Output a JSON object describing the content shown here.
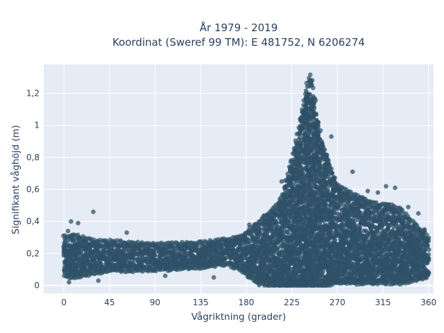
{
  "chart_data": {
    "type": "scatter",
    "title_lines": [
      "År 1979 - 2019",
      "Koordinat (Sweref 99 TM): E 481752, N 6206274"
    ],
    "xlabel": "Vågriktning (grader)",
    "ylabel": "Signifikant våghöjd (m)",
    "xlim": [
      -20,
      365
    ],
    "ylim": [
      -0.05,
      1.38
    ],
    "x_ticks": [
      0,
      45,
      90,
      135,
      180,
      225,
      270,
      315,
      360
    ],
    "x_tick_labels": [
      "0",
      "45",
      "90",
      "135",
      "180",
      "225",
      "270",
      "315",
      "360"
    ],
    "y_ticks": [
      0,
      0.2,
      0.4,
      0.6,
      0.8,
      1,
      1.2
    ],
    "y_tick_labels": [
      "0",
      "0,2",
      "0,4",
      "0,6",
      "0,8",
      "1",
      "1,2"
    ],
    "grid": true,
    "marker_color": "#2f5268",
    "background": "#e5ecf6",
    "envelope": {
      "x": [
        0,
        10,
        30,
        45,
        90,
        135,
        160,
        175,
        190,
        205,
        215,
        222,
        230,
        235,
        240,
        243,
        246,
        250,
        255,
        260,
        265,
        270,
        280,
        290,
        300,
        310,
        320,
        330,
        340,
        350,
        360
      ],
      "y_low": [
        0.06,
        0.06,
        0.08,
        0.1,
        0.1,
        0.12,
        0.14,
        0.1,
        0.02,
        0.0,
        0.0,
        0.0,
        0.0,
        0.0,
        0.0,
        0.0,
        0.0,
        0.0,
        0.0,
        0.0,
        0.02,
        0.02,
        0.02,
        0.02,
        0.02,
        0.02,
        0.02,
        0.02,
        0.03,
        0.04,
        0.06
      ],
      "y_high": [
        0.3,
        0.31,
        0.27,
        0.27,
        0.25,
        0.26,
        0.28,
        0.3,
        0.38,
        0.46,
        0.54,
        0.72,
        0.92,
        1.08,
        1.25,
        1.31,
        1.25,
        1.05,
        0.88,
        0.8,
        0.7,
        0.62,
        0.58,
        0.55,
        0.52,
        0.5,
        0.5,
        0.48,
        0.42,
        0.36,
        0.3
      ]
    },
    "outliers": [
      {
        "x": 4,
        "y": 0.34
      },
      {
        "x": 7,
        "y": 0.4
      },
      {
        "x": 14,
        "y": 0.39
      },
      {
        "x": 29,
        "y": 0.46
      },
      {
        "x": 34,
        "y": 0.03
      },
      {
        "x": 5,
        "y": 0.02
      },
      {
        "x": 62,
        "y": 0.33
      },
      {
        "x": 100,
        "y": 0.06
      },
      {
        "x": 148,
        "y": 0.05
      },
      {
        "x": 183,
        "y": 0.38
      },
      {
        "x": 197,
        "y": 0.43
      },
      {
        "x": 215,
        "y": 0.65
      },
      {
        "x": 251,
        "y": 1.02
      },
      {
        "x": 264,
        "y": 0.93
      },
      {
        "x": 285,
        "y": 0.71
      },
      {
        "x": 300,
        "y": 0.59
      },
      {
        "x": 310,
        "y": 0.58
      },
      {
        "x": 318,
        "y": 0.62
      },
      {
        "x": 327,
        "y": 0.61
      },
      {
        "x": 340,
        "y": 0.49
      },
      {
        "x": 350,
        "y": 0.45
      },
      {
        "x": 356,
        "y": 0.35
      }
    ]
  }
}
